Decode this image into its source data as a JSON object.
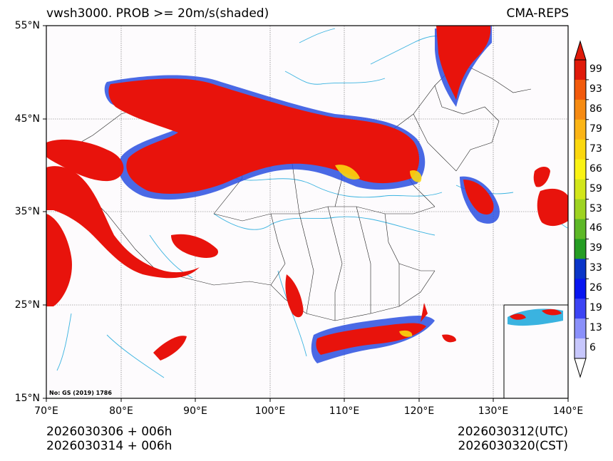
{
  "title": {
    "left": "vwsh3000. PROB >= 20m/s(shaded)",
    "right": "CMA-REPS"
  },
  "map": {
    "y_ticks": [
      "55°N",
      "45°N",
      "35°N",
      "25°N",
      "15°N"
    ],
    "x_ticks": [
      "70°E",
      "80°E",
      "90°E",
      "100°E",
      "110°E",
      "120°E",
      "130°E",
      "140°E"
    ],
    "approval_note": "No: GS (2019) 1786"
  },
  "colorbar": {
    "levels": [
      "99",
      "93",
      "86",
      "79",
      "73",
      "66",
      "59",
      "53",
      "46",
      "39",
      "33",
      "26",
      "19",
      "13",
      "6"
    ],
    "colors": [
      "#e01a0a",
      "#f25a0c",
      "#f68b12",
      "#fbb516",
      "#fbd80e",
      "#faf314",
      "#d2e61a",
      "#9ed321",
      "#5db827",
      "#259d23",
      "#0a35c8",
      "#0816f0",
      "#3c44f4",
      "#8a90fa",
      "#c7c7fc"
    ]
  },
  "footer": {
    "init_utc": "2026030306  +  006h",
    "init_cst": "2026030314  +  006h",
    "valid_utc": "2026030312(UTC)",
    "valid_cst": "2026030320(CST)"
  }
}
